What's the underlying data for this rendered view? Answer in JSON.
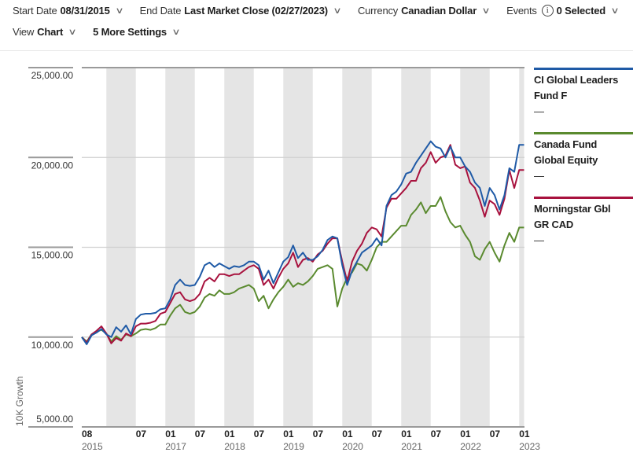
{
  "toolbar": {
    "start_date": {
      "label": "Start Date",
      "value": "08/31/2015"
    },
    "end_date": {
      "label": "End Date",
      "value": "Last Market Close (02/27/2023)"
    },
    "currency": {
      "label": "Currency",
      "value": "Canadian Dollar"
    },
    "events": {
      "label": "Events",
      "value": "0 Selected",
      "info_icon": "i"
    },
    "view": {
      "label": "View",
      "value": "Chart"
    },
    "more_settings": {
      "value": "5 More Settings"
    },
    "chevron": "∨"
  },
  "legend": [
    {
      "name_line1": "CI Global Leaders",
      "name_line2": "Fund F",
      "value": "—",
      "color": "#1f5aa6"
    },
    {
      "name_line1": "Canada Fund",
      "name_line2": "Global Equity",
      "value": "—",
      "color": "#5a8a2f"
    },
    {
      "name_line1": "Morningstar Gbl",
      "name_line2": "GR CAD",
      "value": "—",
      "color": "#a8123e"
    }
  ],
  "chart_data": {
    "type": "line",
    "title": "",
    "xlabel": "",
    "ylabel": "10K Growth",
    "ylim": [
      5000,
      25000
    ],
    "yticks": [
      5000,
      10000,
      15000,
      20000,
      25000
    ],
    "ytick_labels": [
      "5,000.00",
      "10,000.00",
      "15,000.00",
      "20,000.00",
      "25,000.00"
    ],
    "x_start": "2015-08",
    "x_end": "2023-02",
    "xtick_labels": [
      {
        "month": "2015-08",
        "top": "08",
        "bottom": "2015"
      },
      {
        "month": "2016-07",
        "top": "07",
        "bottom": ""
      },
      {
        "month": "2017-01",
        "top": "01",
        "bottom": "2017"
      },
      {
        "month": "2017-07",
        "top": "07",
        "bottom": ""
      },
      {
        "month": "2018-01",
        "top": "01",
        "bottom": "2018"
      },
      {
        "month": "2018-07",
        "top": "07",
        "bottom": ""
      },
      {
        "month": "2019-01",
        "top": "01",
        "bottom": "2019"
      },
      {
        "month": "2019-07",
        "top": "07",
        "bottom": ""
      },
      {
        "month": "2020-01",
        "top": "01",
        "bottom": "2020"
      },
      {
        "month": "2020-07",
        "top": "07",
        "bottom": ""
      },
      {
        "month": "2021-01",
        "top": "01",
        "bottom": "2021"
      },
      {
        "month": "2021-07",
        "top": "07",
        "bottom": ""
      },
      {
        "month": "2022-01",
        "top": "01",
        "bottom": "2022"
      },
      {
        "month": "2022-07",
        "top": "07",
        "bottom": ""
      },
      {
        "month": "2023-01",
        "top": "01",
        "bottom": "2023"
      }
    ],
    "shaded_bands": [
      [
        "2016-01",
        "2016-07"
      ],
      [
        "2017-01",
        "2017-07"
      ],
      [
        "2018-01",
        "2018-07"
      ],
      [
        "2019-01",
        "2019-07"
      ],
      [
        "2020-01",
        "2020-07"
      ],
      [
        "2021-01",
        "2021-07"
      ],
      [
        "2022-01",
        "2022-07"
      ],
      [
        "2023-01",
        "2023-02"
      ]
    ],
    "grid": true,
    "legend_position": "right",
    "series": [
      {
        "name": "CI Global Leaders Fund F",
        "color": "#1f5aa6",
        "values": [
          10000,
          9600,
          10100,
          10250,
          10450,
          10150,
          10000,
          10550,
          10300,
          10650,
          10150,
          11000,
          11250,
          11300,
          11300,
          11350,
          11550,
          11600,
          12100,
          12900,
          13200,
          12900,
          12850,
          12900,
          13350,
          14000,
          14150,
          13900,
          14100,
          13950,
          13800,
          13950,
          13900,
          14000,
          14200,
          14200,
          14000,
          13200,
          13700,
          13000,
          13600,
          14200,
          14450,
          15100,
          14400,
          14700,
          14300,
          14300,
          14500,
          14850,
          15400,
          15600,
          15500,
          14000,
          12900,
          13700,
          14200,
          14700,
          14900,
          15100,
          15500,
          15100,
          17300,
          17900,
          18100,
          18500,
          19100,
          19200,
          19700,
          20100,
          20500,
          20900,
          20600,
          20500,
          20000,
          20600,
          20000,
          20000,
          19500,
          19200,
          18600,
          18300,
          17300,
          18300,
          17900,
          17100,
          17900,
          19400,
          19200,
          20700,
          20700
        ]
      },
      {
        "name": "Canada Fund Global Equity",
        "color": "#5a8a2f",
        "values": [
          10000,
          9750,
          10150,
          10300,
          10400,
          10200,
          9750,
          10050,
          9850,
          10150,
          10050,
          10200,
          10400,
          10450,
          10400,
          10500,
          10700,
          10700,
          11200,
          11600,
          11800,
          11400,
          11300,
          11400,
          11700,
          12200,
          12400,
          12300,
          12600,
          12400,
          12400,
          12500,
          12700,
          12800,
          12900,
          12700,
          12000,
          12300,
          11600,
          12100,
          12500,
          12800,
          13200,
          12800,
          13000,
          12900,
          13100,
          13400,
          13800,
          13900,
          14000,
          13800,
          11700,
          12700,
          13300,
          13600,
          14100,
          14000,
          13700,
          14300,
          15000,
          15300,
          15300,
          15600,
          15900,
          16200,
          16200,
          16800,
          17100,
          17500,
          16900,
          17300,
          17300,
          17800,
          17000,
          16400,
          16100,
          16200,
          15700,
          15300,
          14500,
          14300,
          14900,
          15300,
          14700,
          14200,
          15100,
          15800,
          15300,
          16100,
          16100
        ]
      },
      {
        "name": "Morningstar Gbl GR CAD",
        "color": "#a8123e",
        "values": [
          10000,
          9700,
          10150,
          10350,
          10600,
          10200,
          9650,
          9950,
          9800,
          10200,
          10050,
          10600,
          10750,
          10750,
          10800,
          10900,
          11300,
          11400,
          11900,
          12400,
          12500,
          12100,
          12000,
          12100,
          12400,
          13100,
          13300,
          13100,
          13500,
          13500,
          13400,
          13500,
          13500,
          13700,
          13900,
          14000,
          13800,
          12900,
          13200,
          12700,
          13300,
          13800,
          14100,
          14700,
          13900,
          14300,
          14400,
          14200,
          14600,
          14800,
          15200,
          15500,
          15500,
          14200,
          13100,
          14200,
          14800,
          15200,
          15800,
          16100,
          16000,
          15600,
          17200,
          17700,
          17700,
          18000,
          18300,
          18700,
          18700,
          19400,
          19700,
          20300,
          19700,
          20000,
          20100,
          20700,
          19600,
          19400,
          19500,
          18600,
          18300,
          17600,
          16700,
          17600,
          17400,
          16800,
          17700,
          19300,
          18300,
          19300,
          19300
        ]
      }
    ]
  }
}
